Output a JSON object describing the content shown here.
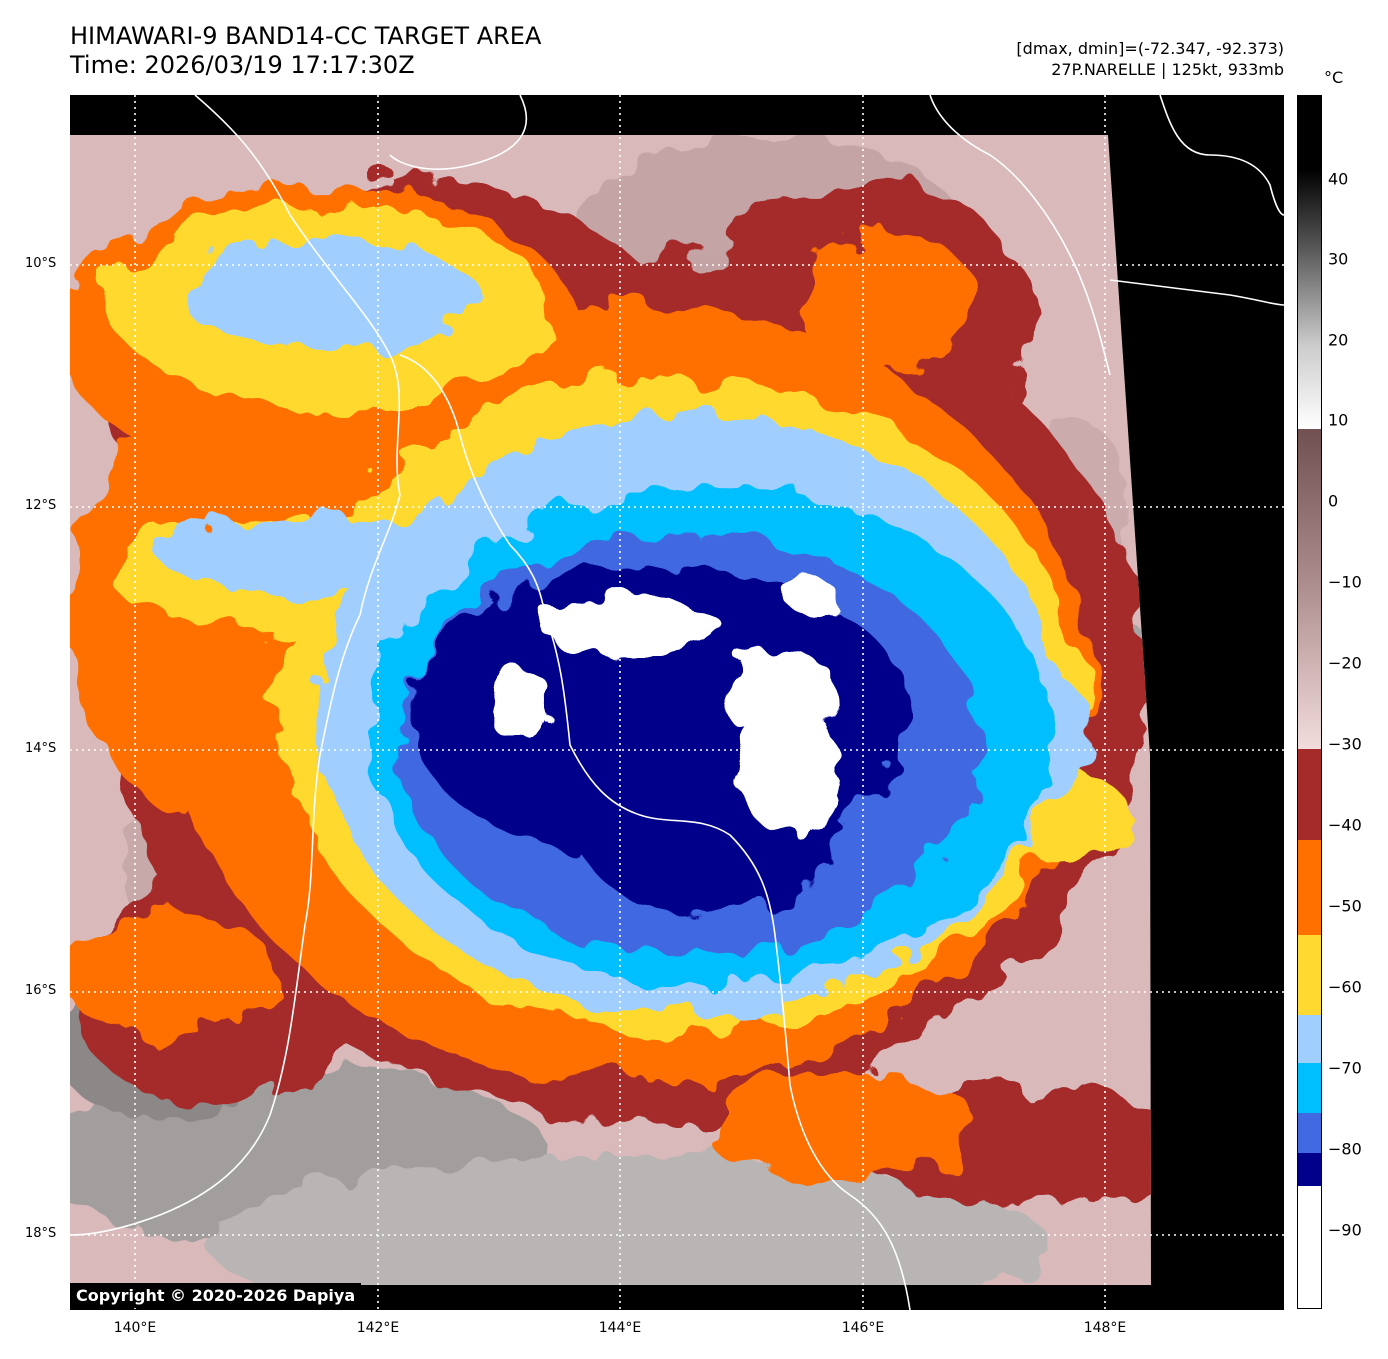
{
  "header": {
    "title_line1": "HIMAWARI-9 BAND14-CC TARGET AREA",
    "title_line2": "Time: 2026/03/19 17:17:30Z",
    "meta_line1": "[dmax, dmin]=(-72.347, -92.373)",
    "meta_line2": "27P.NARELLE | 125kt, 933mb"
  },
  "map": {
    "copyright": "Copyright © 2020-2026 Dapiya",
    "lat_labels": [
      "10°S",
      "12°S",
      "14°S",
      "16°S",
      "18°S"
    ],
    "lon_labels": [
      "140°E",
      "142°E",
      "144°E",
      "146°E",
      "148°E"
    ]
  },
  "colorbar": {
    "unit": "°C",
    "ticks": [
      "40",
      "30",
      "20",
      "10",
      "0",
      "−10",
      "−20",
      "−30",
      "−40",
      "−50",
      "−60",
      "−70",
      "−80",
      "−90"
    ]
  },
  "colors": {
    "white_lt_-84": "#ffffff",
    "navy_-84_-80": "#00008b",
    "royal_-80_-76": "#4169e1",
    "sky_-76_-70": "#00bfff",
    "pale_blue_-70_-64": "#a0cfff",
    "yellow_-64_-54": "#ffd92f",
    "orange_-54_-42": "#ff7000",
    "dark_red_-42_-30": "#a52a2a",
    "pink_gray_-30_10": "#eecccc",
    "gray_10_50": "#777777"
  }
}
